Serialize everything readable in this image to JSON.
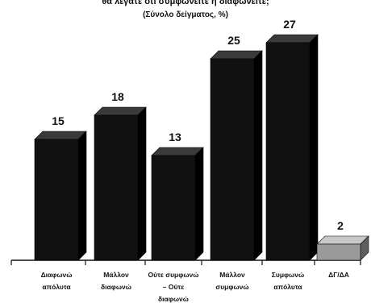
{
  "chart_data": {
    "type": "bar",
    "title": "θα λέγατε ότι συμφωνείτε ή διαφωνείτε;",
    "subtitle": "(Σύνολο δείγματος, %)",
    "categories": [
      [
        "Διαφωνώ",
        "απόλυτα"
      ],
      [
        "Μάλλον",
        "διαφωνώ"
      ],
      [
        "Ούτε συμφωνώ",
        "– Ούτε",
        "διαφωνώ"
      ],
      [
        "Μάλλον",
        "συμφωνώ"
      ],
      [
        "Συμφωνώ",
        "απόλυτα"
      ],
      [
        "ΔΓ/ΔΑ"
      ]
    ],
    "values": [
      15,
      18,
      13,
      25,
      27,
      2
    ],
    "labels": [
      "15",
      "18",
      "13",
      "25",
      "27",
      "2"
    ],
    "ylim": [
      0,
      30
    ],
    "grid": false,
    "colors": {
      "bar": "#111111",
      "bar_side": "#000000",
      "bar_top": "#3a3a3a",
      "last_bar": "#9a9a9a",
      "last_bar_side": "#5f5f5f",
      "last_bar_top": "#c8c8c8",
      "axis": "#111111"
    }
  }
}
